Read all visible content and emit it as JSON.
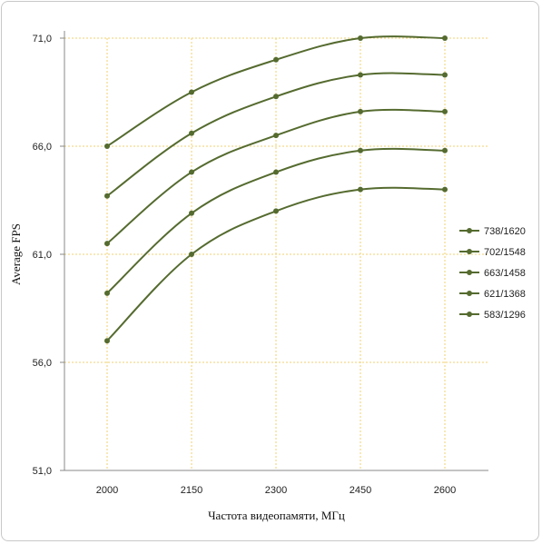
{
  "chart_data": {
    "type": "line",
    "title": "",
    "xlabel": "Частота видеопамяти, МГц",
    "ylabel": "Average FPS",
    "categories": [
      "2000",
      "2150",
      "2300",
      "2450",
      "2600"
    ],
    "y_ticks": [
      "51,0",
      "56,0",
      "61,0",
      "66,0",
      "71,0"
    ],
    "ylim": [
      51,
      71
    ],
    "grid": true,
    "legend_position": "right",
    "line_color": "#556b2f",
    "grid_color": "#f0d070",
    "series": [
      {
        "name": "738/1620",
        "values": [
          66.0,
          68.5,
          70.0,
          71.0,
          71.0
        ]
      },
      {
        "name": "702/1548",
        "values": [
          63.7,
          66.6,
          68.3,
          69.3,
          69.3
        ]
      },
      {
        "name": "663/1458",
        "values": [
          61.5,
          64.8,
          66.5,
          67.6,
          67.6
        ]
      },
      {
        "name": "621/1368",
        "values": [
          59.2,
          62.9,
          64.8,
          65.8,
          65.8
        ]
      },
      {
        "name": "583/1296",
        "values": [
          57.0,
          61.0,
          63.0,
          64.0,
          64.0
        ]
      }
    ]
  }
}
